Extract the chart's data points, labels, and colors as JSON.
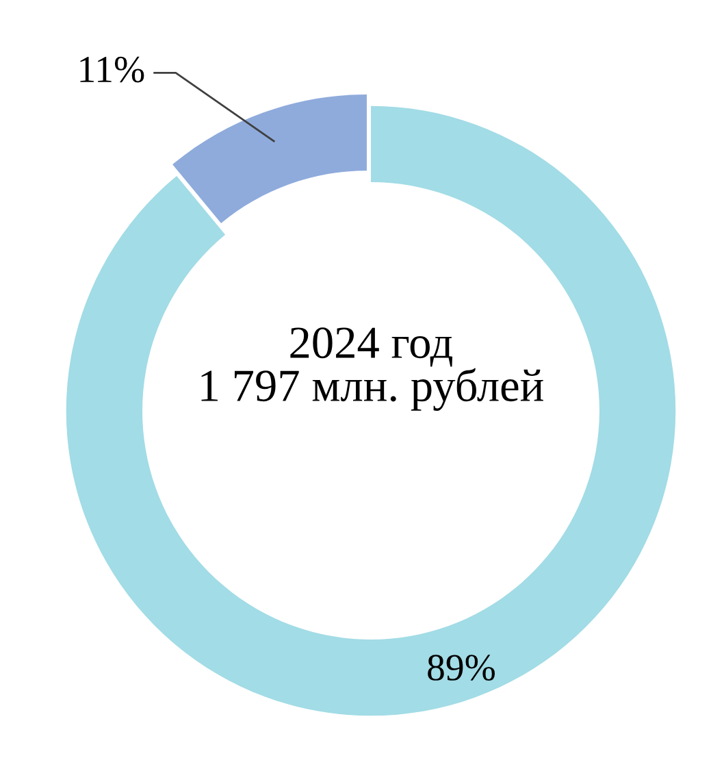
{
  "chart_data": {
    "type": "donut",
    "title": "2024 год",
    "subtitle": "1 797 млн. рублей",
    "categories": [
      null,
      null
    ],
    "values": [
      89,
      11
    ],
    "colors": [
      "#a2dce6",
      "#8fabdc"
    ],
    "value_labels": [
      "89%",
      "11%"
    ],
    "legend": false
  }
}
